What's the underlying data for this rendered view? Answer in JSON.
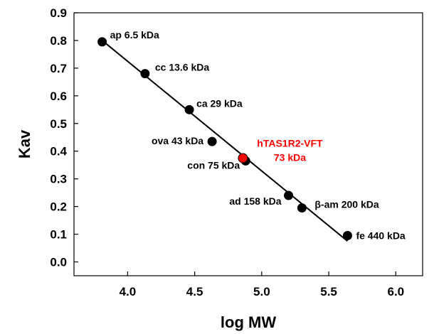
{
  "chart_data": {
    "type": "scatter",
    "xlabel": "log MW",
    "ylabel": "Kav",
    "xlim": [
      3.6,
      6.2
    ],
    "ylim": [
      -0.05,
      0.9
    ],
    "xticks": [
      "4.0",
      "4.5",
      "5.0",
      "5.5",
      "6.0"
    ],
    "yticks": [
      "0.0",
      "0.1",
      "0.2",
      "0.3",
      "0.4",
      "0.5",
      "0.6",
      "0.7",
      "0.8",
      "0.9"
    ],
    "grid": false,
    "points": [
      {
        "label": "ap 6.5 kDa",
        "x": 3.81,
        "y": 0.795
      },
      {
        "label": "cc 13.6 kDa",
        "x": 4.13,
        "y": 0.68
      },
      {
        "label": "ca 29 kDa",
        "x": 4.46,
        "y": 0.55
      },
      {
        "label": "ova 43 kDa",
        "x": 4.63,
        "y": 0.435
      },
      {
        "label": "con 75 kDa",
        "x": 4.88,
        "y": 0.365
      },
      {
        "label": "ad 158 kDa",
        "x": 5.2,
        "y": 0.24
      },
      {
        "label": "β-am 200 kDa",
        "x": 5.3,
        "y": 0.195
      },
      {
        "label": "fe 440 kDa",
        "x": 5.64,
        "y": 0.095
      }
    ],
    "highlight": {
      "label_line1": "hTAS1R2-VFT",
      "label_line2": "73 kDa",
      "x": 4.86,
      "y": 0.375,
      "color": "#ff0000"
    },
    "fit_line": {
      "x_start": 3.81,
      "y_start": 0.8,
      "x_end": 5.64,
      "y_end": 0.075
    },
    "colors": {
      "points": "#000000",
      "line": "#000000",
      "highlight": "#ff0000"
    }
  }
}
